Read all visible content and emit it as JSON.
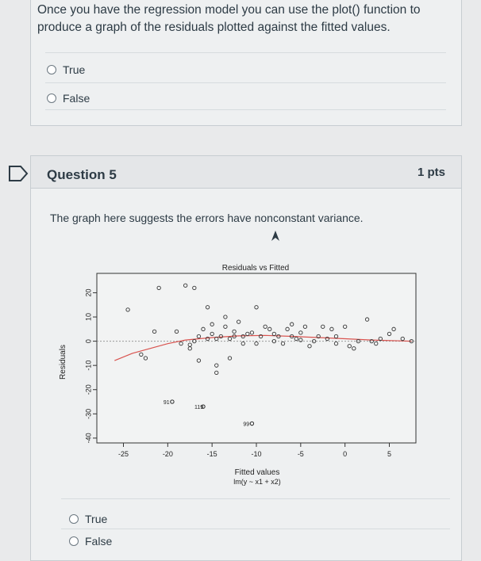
{
  "question4": {
    "text": "Once you have the regression model you can use the plot() function to produce a graph of the residuals plotted against the fitted values.",
    "answers": [
      "True",
      "False"
    ]
  },
  "question5": {
    "title": "Question 5",
    "points": "1 pts",
    "text": "The graph here suggests the errors have nonconstant variance.",
    "answers": [
      "True",
      "False"
    ]
  },
  "icons": {
    "flag": "flag-outline-icon",
    "cursor": "mouse-cursor-icon"
  },
  "chart_data": {
    "type": "scatter",
    "title": "Residuals vs Fitted",
    "xlabel": "Fitted values",
    "xlabel_sub": "lm(y ~ x1 + x2)",
    "ylabel": "Residuals",
    "xlim": [
      -28,
      8
    ],
    "ylim": [
      -42,
      28
    ],
    "x_ticks": [
      -25,
      -20,
      -15,
      -10,
      -5,
      0,
      5
    ],
    "y_ticks": [
      -40,
      -30,
      -20,
      -10,
      0,
      10,
      20
    ],
    "annotations": [
      {
        "label": "91",
        "x": -19.5,
        "y": -25
      },
      {
        "label": "119",
        "x": -16,
        "y": -27
      },
      {
        "label": "99",
        "x": -10.5,
        "y": -34
      }
    ],
    "points": [
      [
        -24.5,
        13
      ],
      [
        -23,
        -5.5
      ],
      [
        -22.5,
        -7
      ],
      [
        -21,
        22
      ],
      [
        -21.5,
        4
      ],
      [
        -19.5,
        -25
      ],
      [
        -19,
        4
      ],
      [
        -18.5,
        -1
      ],
      [
        -18,
        23
      ],
      [
        -17.5,
        -3
      ],
      [
        -17,
        22
      ],
      [
        -17,
        0
      ],
      [
        -17.5,
        -1.5
      ],
      [
        -16.5,
        2
      ],
      [
        -16.5,
        -8
      ],
      [
        -16,
        5
      ],
      [
        -16,
        -27
      ],
      [
        -15.5,
        1
      ],
      [
        -15.5,
        14
      ],
      [
        -15,
        7
      ],
      [
        -15,
        3
      ],
      [
        -14.5,
        1
      ],
      [
        -14.5,
        -10
      ],
      [
        -14.5,
        -13
      ],
      [
        -14,
        2
      ],
      [
        -13.5,
        6
      ],
      [
        -13.5,
        10
      ],
      [
        -13,
        1
      ],
      [
        -13,
        -7
      ],
      [
        -12.5,
        4
      ],
      [
        -12.5,
        2
      ],
      [
        -12,
        8
      ],
      [
        -11.5,
        2
      ],
      [
        -11.5,
        -1
      ],
      [
        -11,
        3
      ],
      [
        -10.5,
        -34
      ],
      [
        -10.5,
        3.5
      ],
      [
        -10,
        14
      ],
      [
        -10,
        -1
      ],
      [
        -9.5,
        2
      ],
      [
        -9,
        6
      ],
      [
        -8.5,
        5
      ],
      [
        -8,
        3
      ],
      [
        -8,
        0
      ],
      [
        -7.5,
        2
      ],
      [
        -7,
        -1
      ],
      [
        -6.5,
        5
      ],
      [
        -6,
        2
      ],
      [
        -6,
        7
      ],
      [
        -5.5,
        1
      ],
      [
        -5,
        3.5
      ],
      [
        -5,
        0.5
      ],
      [
        -4.5,
        6
      ],
      [
        -4,
        -2
      ],
      [
        -3.5,
        0
      ],
      [
        -3,
        2
      ],
      [
        -2.5,
        6
      ],
      [
        -2,
        1
      ],
      [
        -1.5,
        5
      ],
      [
        -1,
        -1
      ],
      [
        -1,
        2
      ],
      [
        0,
        6
      ],
      [
        0.5,
        -2
      ],
      [
        1,
        -3
      ],
      [
        1.5,
        0
      ],
      [
        2.5,
        9
      ],
      [
        3,
        0
      ],
      [
        3.5,
        -1
      ],
      [
        4,
        1
      ],
      [
        5,
        3
      ],
      [
        5.5,
        5
      ],
      [
        6.5,
        1
      ],
      [
        7.5,
        0
      ]
    ]
  }
}
